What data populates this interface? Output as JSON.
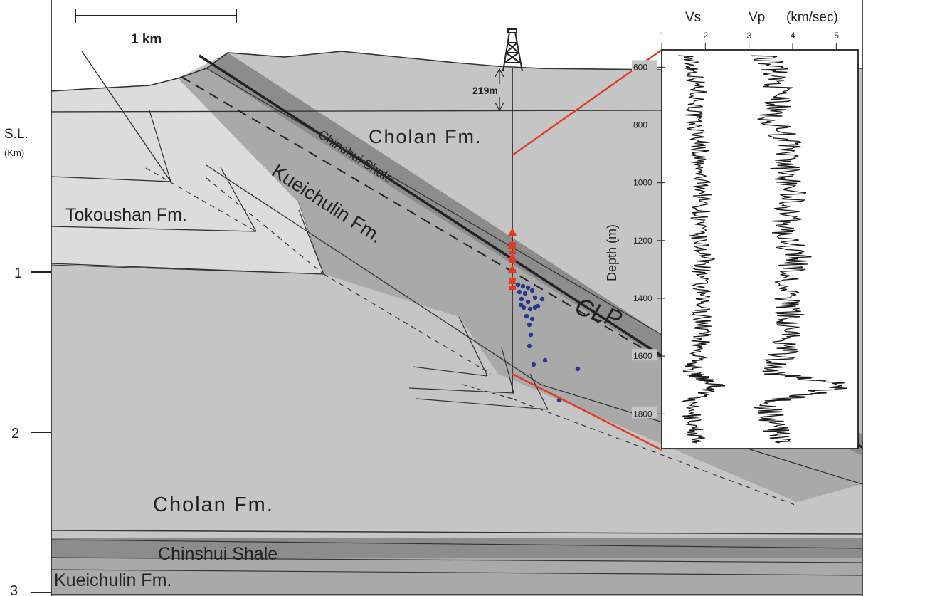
{
  "scale_bar": {
    "label": "1 km"
  },
  "depth_axis": {
    "sea_level_label": "S.L.",
    "unit_label": "(Km)",
    "ticks": [
      "1",
      "2",
      "3"
    ]
  },
  "well": {
    "offset_label": "219m"
  },
  "formations": {
    "cholan_upper": "Cholan Fm.",
    "cholan_lower": "Cholan Fm.",
    "chinshui_dip": "Chinshui Shale",
    "kueichulin_dip": "Kueichulin Fm.",
    "tokoushan": "Tokoushan Fm.",
    "clp": "CLP",
    "chinshui_base": "Chinshui Shale",
    "kueichulin_base": "Kueichulin Fm."
  },
  "colors": {
    "cholan": "#c5c5c5",
    "tokoushan": "#dcdcdc",
    "kueichulin": "#a9a9a9",
    "chinshui": "#8c8c8c",
    "sensor_markers": "#e23a25",
    "events": "#2b3590",
    "zoom_lines": "#e23a25"
  },
  "log_panel": {
    "vs_label": "Vs",
    "vp_label": "Vp",
    "unit_label": "(km/sec)",
    "x_ticks": [
      "1",
      "2",
      "3",
      "4",
      "5"
    ],
    "y_label": "Depth (m)",
    "y_ticks": [
      "600",
      "800",
      "1000",
      "1200",
      "1400",
      "1600",
      "1800"
    ]
  },
  "chart_data": {
    "type": "line",
    "title": "",
    "xlabel": "(km/sec)",
    "ylabel": "Depth (m)",
    "xlim": [
      1,
      5.5
    ],
    "ylim": [
      540,
      1920
    ],
    "series": [
      {
        "name": "Vs",
        "x": [
          1.6,
          1.75,
          1.85,
          1.7,
          1.9,
          1.8,
          1.95,
          1.9,
          1.8,
          2.0,
          1.85,
          1.9,
          1.95,
          1.85,
          1.7,
          2.3,
          1.6,
          1.75,
          1.8
        ],
        "y": [
          560,
          620,
          700,
          780,
          860,
          940,
          1020,
          1100,
          1180,
          1260,
          1340,
          1420,
          1500,
          1580,
          1660,
          1700,
          1760,
          1840,
          1900
        ]
      },
      {
        "name": "Vp",
        "x": [
          3.4,
          3.6,
          3.7,
          3.5,
          3.9,
          3.8,
          4.0,
          3.9,
          3.8,
          4.1,
          3.8,
          3.9,
          3.95,
          3.8,
          3.6,
          5.3,
          3.4,
          3.6,
          3.7
        ],
        "y": [
          560,
          620,
          700,
          780,
          860,
          940,
          1020,
          1100,
          1180,
          1260,
          1340,
          1420,
          1500,
          1580,
          1660,
          1700,
          1760,
          1840,
          1900
        ]
      }
    ]
  }
}
